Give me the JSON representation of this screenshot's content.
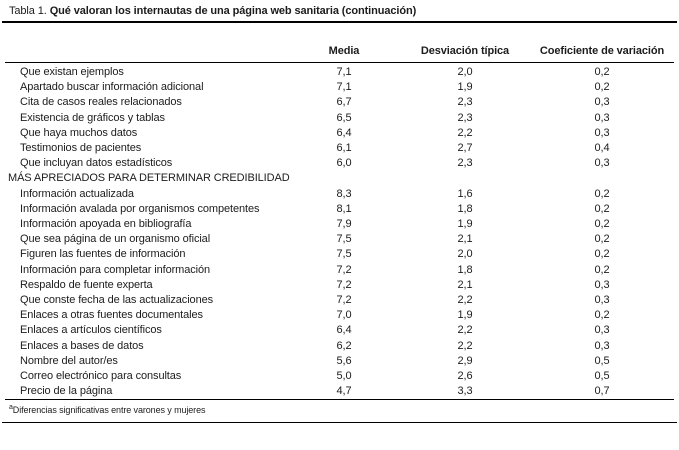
{
  "title": {
    "label": "Tabla 1.",
    "text": "Qué valoran los internautas de una página web sanitaria (continuación)"
  },
  "columns": [
    "Media",
    "Desviación típica",
    "Coeficiente de variación"
  ],
  "sections": [
    {
      "header": null,
      "rows": [
        {
          "label": "Que existan ejemplos",
          "media": "7,1",
          "desviacion": "2,0",
          "coeficiente": "0,2"
        },
        {
          "label": "Apartado buscar información adicional",
          "media": "7,1",
          "desviacion": "1,9",
          "coeficiente": "0,2"
        },
        {
          "label": "Cita de casos reales relacionados",
          "media": "6,7",
          "desviacion": "2,3",
          "coeficiente": "0,3"
        },
        {
          "label": "Existencia de gráficos y tablas",
          "media": "6,5",
          "desviacion": "2,3",
          "coeficiente": "0,3"
        },
        {
          "label": "Que haya muchos datos",
          "media": "6,4",
          "desviacion": "2,2",
          "coeficiente": "0,3"
        },
        {
          "label": "Testimonios de pacientes",
          "media": "6,1",
          "desviacion": "2,7",
          "coeficiente": "0,4"
        },
        {
          "label": "Que incluyan datos estadísticos",
          "media": "6,0",
          "desviacion": "2,3",
          "coeficiente": "0,3"
        }
      ]
    },
    {
      "header": "MÁS APRECIADOS PARA DETERMINAR CREDIBILIDAD",
      "rows": [
        {
          "label": "Información actualizada",
          "media": "8,3",
          "desviacion": "1,6",
          "coeficiente": "0,2"
        },
        {
          "label": "Información avalada por organismos competentes",
          "media": "8,1",
          "desviacion": "1,8",
          "coeficiente": "0,2"
        },
        {
          "label": "Información apoyada en bibliografía",
          "media": "7,9",
          "desviacion": "1,9",
          "coeficiente": "0,2"
        },
        {
          "label": "Que sea página de un organismo oficial",
          "media": "7,5",
          "desviacion": "2,1",
          "coeficiente": "0,2"
        },
        {
          "label": "Figuren las fuentes de información",
          "media": "7,5",
          "desviacion": "2,0",
          "coeficiente": "0,2"
        },
        {
          "label": "Información para completar información",
          "media": "7,2",
          "desviacion": "1,8",
          "coeficiente": "0,2"
        },
        {
          "label": "Respaldo de fuente experta",
          "media": "7,2",
          "desviacion": "2,1",
          "coeficiente": "0,3"
        },
        {
          "label": "Que conste fecha de las actualizaciones",
          "media": "7,2",
          "desviacion": "2,2",
          "coeficiente": "0,3"
        },
        {
          "label": "Enlaces a otras fuentes documentales",
          "media": "7,0",
          "desviacion": "1,9",
          "coeficiente": "0,2"
        },
        {
          "label": "Enlaces a artículos científicos",
          "media": "6,4",
          "desviacion": "2,2",
          "coeficiente": "0,3"
        },
        {
          "label": "Enlaces a bases de datos",
          "media": "6,2",
          "desviacion": "2,2",
          "coeficiente": "0,3"
        },
        {
          "label": "Nombre del autor/es",
          "media": "5,6",
          "desviacion": "2,9",
          "coeficiente": "0,5"
        },
        {
          "label": "Correo electrónico para consultas",
          "media": "5,0",
          "desviacion": "2,6",
          "coeficiente": "0,5"
        },
        {
          "label": "Precio de la página",
          "media": "4,7",
          "desviacion": "3,3",
          "coeficiente": "0,7"
        }
      ]
    }
  ],
  "footnote": {
    "marker": "a",
    "text": "Diferencias significativas entre varones y mujeres"
  }
}
